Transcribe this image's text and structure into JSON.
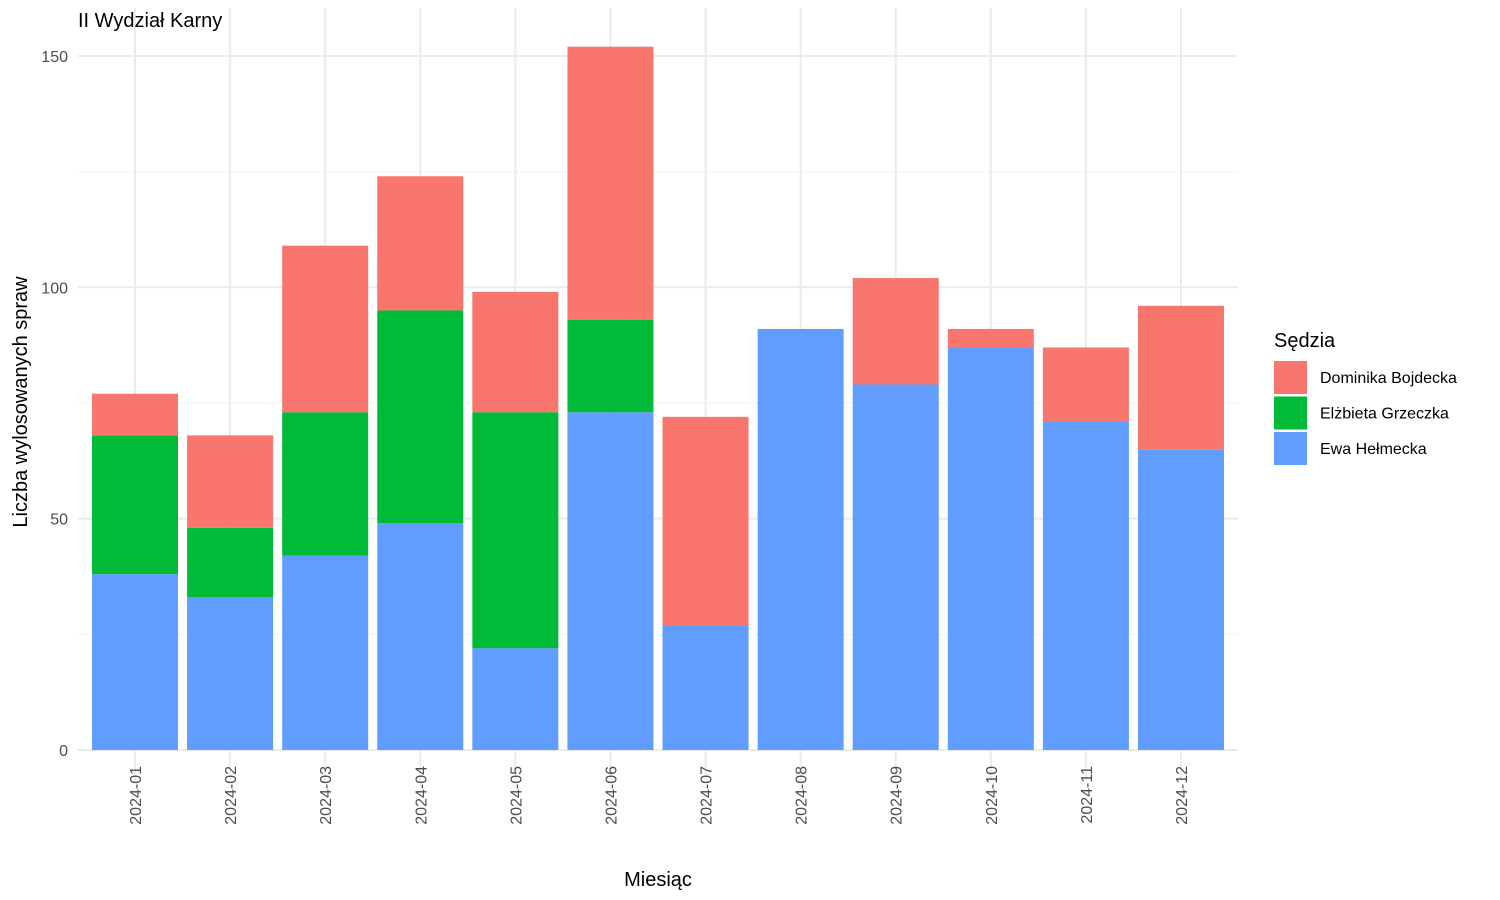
{
  "chart_data": {
    "type": "bar",
    "stacked": true,
    "title": "II Wydział Karny",
    "xlabel": "Miesiąc",
    "ylabel": "Liczba wylosowanych spraw",
    "ylim": [
      0,
      160
    ],
    "yticks": [
      0,
      50,
      100,
      150
    ],
    "grid": true,
    "legend": {
      "title": "Sędzia",
      "position": "right"
    },
    "categories": [
      "2024-01",
      "2024-02",
      "2024-03",
      "2024-04",
      "2024-05",
      "2024-06",
      "2024-07",
      "2024-08",
      "2024-09",
      "2024-10",
      "2024-11",
      "2024-12"
    ],
    "series": [
      {
        "name": "Ewa Hełmecka",
        "color": "#619CFF",
        "values": [
          38,
          33,
          42,
          49,
          22,
          73,
          27,
          91,
          79,
          87,
          71,
          65
        ]
      },
      {
        "name": "Elżbieta Grzeczka",
        "color": "#00BA38",
        "values": [
          30,
          15,
          31,
          46,
          51,
          20,
          0,
          0,
          0,
          0,
          0,
          0
        ]
      },
      {
        "name": "Dominika Bojdecka",
        "color": "#F8766D",
        "values": [
          9,
          20,
          36,
          29,
          26,
          59,
          45,
          0,
          23,
          4,
          16,
          31
        ]
      }
    ],
    "legend_order": [
      "Dominika Bojdecka",
      "Elżbieta Grzeczka",
      "Ewa Hełmecka"
    ]
  }
}
